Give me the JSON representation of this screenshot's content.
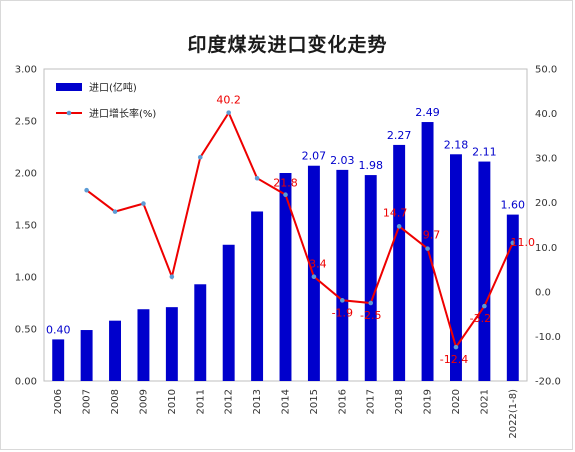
{
  "chart_data": {
    "type": "bar+line",
    "title": "印度煤炭进口变化走势",
    "categories": [
      "2006",
      "2007",
      "2008",
      "2009",
      "2010",
      "2011",
      "2012",
      "2013",
      "2014",
      "2015",
      "2016",
      "2017",
      "2018",
      "2019",
      "2020",
      "2021",
      "2022(1-8)"
    ],
    "series": [
      {
        "name": "进口(亿吨)",
        "type": "bar",
        "axis": "left",
        "color": "#0000cc",
        "values": [
          0.4,
          0.49,
          0.58,
          0.69,
          0.71,
          0.93,
          1.31,
          1.63,
          2.0,
          2.07,
          2.03,
          1.98,
          2.27,
          2.49,
          2.18,
          2.11,
          1.6
        ],
        "data_labels": {
          "0": "0.40",
          "9": "2.07",
          "10": "2.03",
          "11": "1.98",
          "12": "2.27",
          "13": "2.49",
          "14": "2.18",
          "15": "2.11",
          "16": "1.60"
        }
      },
      {
        "name": "进口增长率(%)",
        "type": "line",
        "axis": "right",
        "color": "#ee0000",
        "marker_color": "#5b9bd5",
        "values": [
          null,
          22.8,
          18.0,
          19.8,
          3.4,
          30.2,
          40.2,
          25.5,
          21.8,
          3.4,
          -1.9,
          -2.5,
          14.7,
          9.7,
          -12.4,
          -3.2,
          11.0
        ],
        "data_labels": {
          "6": "40.2",
          "8": "21.8",
          "9": "3.4",
          "10": "-1.9",
          "11": "-2.5",
          "12": "14.7",
          "13": "9.7",
          "14": "-12.4",
          "15": "-3.2",
          "16": "11.0"
        }
      }
    ],
    "y_left": {
      "min": 0,
      "max": 3,
      "ticks": [
        "0.00",
        "0.50",
        "1.00",
        "1.50",
        "2.00",
        "2.50",
        "3.00"
      ]
    },
    "y_right": {
      "min": -20,
      "max": 50,
      "ticks": [
        "-20.0",
        "-10.0",
        "0.0",
        "10.0",
        "20.0",
        "30.0",
        "40.0",
        "50.0"
      ]
    },
    "grid": false,
    "legend": "top-left"
  }
}
